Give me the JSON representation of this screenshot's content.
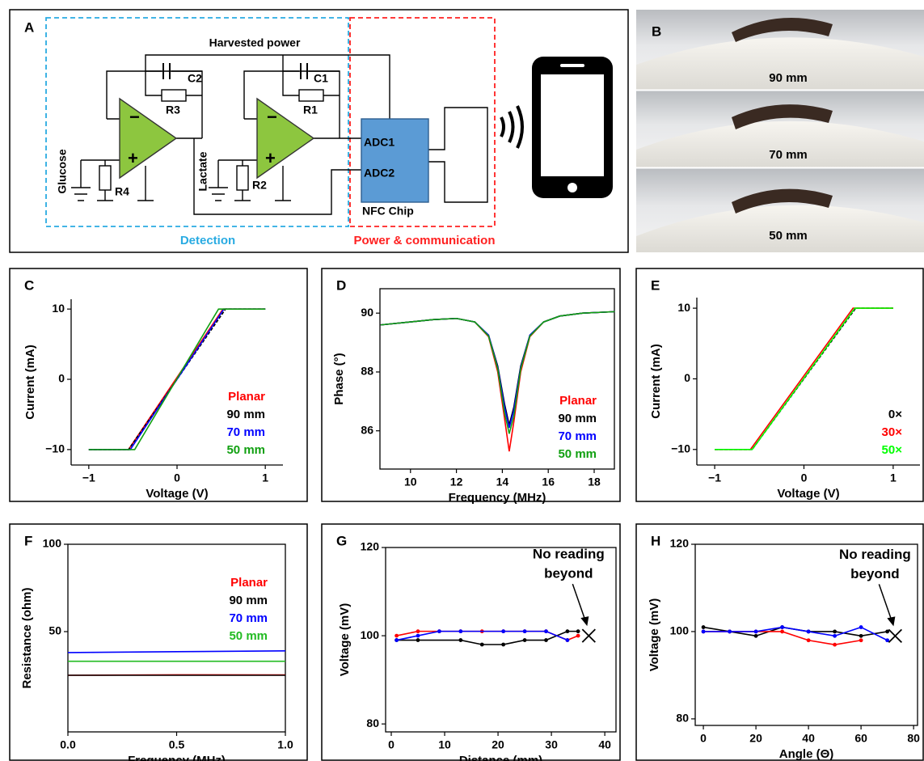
{
  "panel_a": {
    "label": "A",
    "harvested_power": "Harvested power",
    "components": {
      "c2": "C2",
      "r3": "R3",
      "c1": "C1",
      "r1": "R1",
      "r4": "R4",
      "r2": "R2"
    },
    "inputs": [
      "Glucose",
      "Lactate"
    ],
    "opamp_signs": [
      "−",
      "+"
    ],
    "adc": [
      "ADC1",
      "ADC2"
    ],
    "chip": "NFC Chip",
    "sections": [
      "Detection",
      "Power & communication"
    ]
  },
  "panel_b": {
    "label": "B",
    "photos": [
      "90 mm",
      "70 mm",
      "50 mm"
    ]
  },
  "chart_data": [
    {
      "type": "line",
      "label": "C",
      "xlabel": "Voltage (V)",
      "ylabel": "Current (mA)",
      "xlim": [
        -1.2,
        1.2
      ],
      "ylim": [
        -12.2,
        11.4
      ],
      "xticks": [
        {
          "value": -1,
          "label": "−1"
        },
        0,
        1
      ],
      "yticks": [
        {
          "value": -10,
          "label": "−10"
        },
        0,
        10
      ],
      "spines": "open",
      "legend": "lower right",
      "series": [
        {
          "name": "Planar",
          "color": "#ff0000",
          "linestyle": "solid",
          "x": [
            -1,
            -0.55,
            0.52,
            1
          ],
          "values": [
            -10,
            -10,
            10,
            10
          ]
        },
        {
          "name": "90 mm",
          "color": "#000000",
          "linestyle": "dashed",
          "x": [
            -1,
            -0.55,
            0.55,
            1
          ],
          "values": [
            -10,
            -10,
            10,
            10
          ]
        },
        {
          "name": "70 mm",
          "color": "#0000ff",
          "linestyle": "solid",
          "x": [
            -1,
            -0.53,
            0.53,
            1
          ],
          "values": [
            -10,
            -10,
            10,
            10
          ]
        },
        {
          "name": "50 mm",
          "color": "#11a011",
          "linestyle": "solid",
          "x": [
            -1,
            -0.48,
            0.47,
            1
          ],
          "values": [
            -10,
            -10,
            10,
            10
          ]
        }
      ]
    },
    {
      "type": "line",
      "label": "D",
      "xlabel": "Frequency (MHz)",
      "ylabel": "Phase (°)",
      "xlim": [
        8.67,
        18.88
      ],
      "ylim": [
        84.7,
        90.83
      ],
      "xticks": [
        10,
        12,
        14,
        16,
        18
      ],
      "yticks": [
        86,
        88,
        90
      ],
      "spines": "box",
      "legend": "lower right",
      "series": [
        {
          "name": "Planar",
          "color": "#ff0000",
          "linestyle": "solid",
          "x": [
            8.7,
            10,
            11,
            12,
            12.8,
            13.4,
            13.8,
            14.1,
            14.3,
            14.5,
            14.8,
            15.2,
            15.8,
            16.5,
            17.5,
            18.9
          ],
          "values": [
            89.6,
            89.7,
            89.78,
            89.82,
            89.7,
            89.2,
            88.0,
            86.4,
            85.3,
            86.3,
            88.0,
            89.2,
            89.7,
            89.9,
            90.0,
            90.05
          ]
        },
        {
          "name": "90 mm",
          "color": "#000000",
          "linestyle": "solid",
          "x": [
            8.7,
            10,
            11,
            12,
            12.8,
            13.4,
            13.8,
            14.1,
            14.3,
            14.5,
            14.8,
            15.2,
            15.8,
            16.5,
            17.5,
            18.9
          ],
          "values": [
            89.6,
            89.7,
            89.78,
            89.82,
            89.7,
            89.25,
            88.2,
            86.9,
            86.2,
            86.8,
            88.2,
            89.25,
            89.7,
            89.9,
            90.0,
            90.05
          ]
        },
        {
          "name": "70 mm",
          "color": "#0000ff",
          "linestyle": "solid",
          "x": [
            8.7,
            10,
            11,
            12,
            12.8,
            13.4,
            13.8,
            14.1,
            14.3,
            14.5,
            14.8,
            15.2,
            15.8,
            16.5,
            17.5,
            18.9
          ],
          "values": [
            89.6,
            89.7,
            89.78,
            89.82,
            89.7,
            89.25,
            88.15,
            86.8,
            86.1,
            86.7,
            88.15,
            89.25,
            89.7,
            89.9,
            90.0,
            90.05
          ]
        },
        {
          "name": "50 mm",
          "color": "#11a011",
          "linestyle": "solid",
          "x": [
            8.7,
            10,
            11,
            12,
            12.8,
            13.4,
            13.8,
            14.1,
            14.3,
            14.5,
            14.8,
            15.2,
            15.8,
            16.5,
            17.5,
            18.9
          ],
          "values": [
            89.6,
            89.7,
            89.78,
            89.82,
            89.7,
            89.22,
            88.1,
            86.6,
            85.9,
            86.5,
            88.1,
            89.22,
            89.7,
            89.9,
            90.0,
            90.05
          ]
        }
      ]
    },
    {
      "type": "line",
      "label": "E",
      "xlabel": "Voltage (V)",
      "ylabel": "Current (mA)",
      "xlim": [
        -1.2,
        1.3
      ],
      "ylim": [
        -12.2,
        11.5
      ],
      "xticks": [
        {
          "value": -1,
          "label": "−1"
        },
        0,
        1
      ],
      "yticks": [
        {
          "value": -10,
          "label": "−10"
        },
        0,
        10
      ],
      "spines": "open",
      "legend": "lower right",
      "series": [
        {
          "name": "0×",
          "color": "#000000",
          "linestyle": "dashed",
          "x": [
            -1,
            -0.58,
            0.58,
            1
          ],
          "values": [
            -10,
            -10,
            10,
            10
          ]
        },
        {
          "name": "30×",
          "color": "#ff0000",
          "linestyle": "solid",
          "x": [
            -1,
            -0.6,
            0.55,
            1
          ],
          "values": [
            -10,
            -10,
            10,
            10
          ]
        },
        {
          "name": "50×",
          "color": "#00ff00",
          "linestyle": "solid",
          "x": [
            -1,
            -0.58,
            0.57,
            1
          ],
          "values": [
            -10,
            -10,
            10,
            10
          ]
        }
      ]
    },
    {
      "type": "line",
      "label": "F",
      "xlabel": "Frequency (MHz)",
      "ylabel": "Resistance (ohm)",
      "xlim": [
        0,
        1
      ],
      "ylim": [
        -7.4,
        100
      ],
      "xticks": [
        {
          "value": 0,
          "label": "0.0"
        },
        0.5,
        {
          "value": 1,
          "label": "1.0"
        }
      ],
      "yticks": [
        50,
        100
      ],
      "spines": "box",
      "legend": "center right",
      "series": [
        {
          "name": "Planar",
          "color": "#ff0000",
          "linestyle": "solid",
          "x": [
            0,
            0.5,
            1
          ],
          "values": [
            25,
            25.3,
            25.2
          ]
        },
        {
          "name": "90 mm",
          "color": "#000000",
          "linestyle": "solid",
          "x": [
            0,
            0.5,
            1
          ],
          "values": [
            25,
            25,
            25
          ]
        },
        {
          "name": "70 mm",
          "color": "#0000ff",
          "linestyle": "solid",
          "x": [
            0,
            0.5,
            1
          ],
          "values": [
            38,
            38.5,
            39
          ]
        },
        {
          "name": "50 mm",
          "color": "#22bb22",
          "linestyle": "solid",
          "x": [
            0,
            0.5,
            1
          ],
          "values": [
            33,
            33,
            33
          ]
        }
      ]
    },
    {
      "type": "line",
      "label": "G",
      "xlabel": "Distance (mm)",
      "ylabel": "Voltage (mV)",
      "xlim": [
        -1.06,
        42.1
      ],
      "ylim": [
        78.2,
        120
      ],
      "xticks": [
        0,
        10,
        20,
        30,
        40
      ],
      "yticks": [
        80,
        100,
        120
      ],
      "spines": "box",
      "markers": true,
      "annotation": {
        "lines": [
          "No reading",
          "beyond"
        ],
        "x": 37,
        "y": 100
      },
      "series": [
        {
          "color": "#ff0000",
          "linestyle": "solid",
          "x": [
            1,
            5,
            9,
            13,
            17,
            21,
            25,
            29,
            33,
            35
          ],
          "values": [
            100,
            101,
            101,
            101,
            101,
            101,
            101,
            101,
            99,
            100
          ]
        },
        {
          "color": "#000000",
          "linestyle": "solid",
          "x": [
            1,
            5,
            13,
            17,
            21,
            25,
            29,
            33,
            35
          ],
          "values": [
            99,
            99,
            99,
            98,
            98,
            99,
            99,
            101,
            101
          ]
        },
        {
          "color": "#0000ff",
          "linestyle": "solid",
          "x": [
            1,
            5,
            9,
            13,
            21,
            25,
            29,
            33
          ],
          "values": [
            99,
            100,
            101,
            101,
            101,
            101,
            101,
            99
          ]
        }
      ]
    },
    {
      "type": "line",
      "label": "H",
      "xlabel": "Angle (Θ)",
      "ylabel": "Voltage (mV)",
      "xlim": [
        -3.1,
        81.5
      ],
      "ylim": [
        78.5,
        120
      ],
      "xticks": [
        0,
        20,
        40,
        60,
        80
      ],
      "yticks": [
        80,
        100,
        120
      ],
      "spines": "box",
      "markers": true,
      "annotation": {
        "lines": [
          "No reading",
          "beyond"
        ],
        "x": 73,
        "y": 99
      },
      "series": [
        {
          "color": "#000000",
          "linestyle": "solid",
          "x": [
            0,
            10,
            20,
            30,
            40,
            50,
            60,
            70
          ],
          "values": [
            101,
            100,
            99,
            101,
            100,
            100,
            99,
            100
          ]
        },
        {
          "color": "#ff0000",
          "linestyle": "solid",
          "x": [
            0,
            10,
            20,
            30,
            40,
            50,
            60
          ],
          "values": [
            100,
            100,
            100,
            100,
            98,
            97,
            98
          ]
        },
        {
          "color": "#0000ff",
          "linestyle": "solid",
          "x": [
            0,
            10,
            20,
            30,
            40,
            50,
            60,
            70
          ],
          "values": [
            100,
            100,
            100,
            101,
            100,
            99,
            101,
            98
          ]
        }
      ]
    }
  ]
}
